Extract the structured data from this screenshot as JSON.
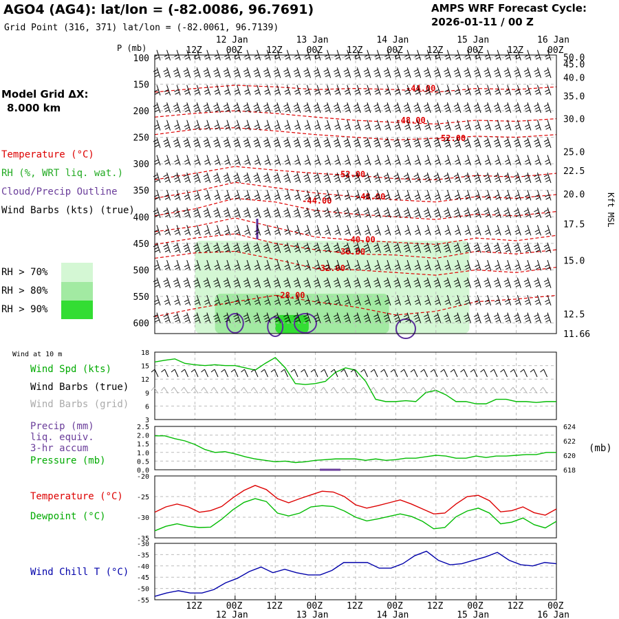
{
  "header": {
    "title": "AGO4 (AG4):  lat/lon = (-82.0086, 96.7691)",
    "grid_point": "Grid Point (316, 371) lat/lon = (-82.0061, 96.7139)",
    "cycle_label": "AMPS WRF Forecast Cycle:",
    "cycle_value": "2026-01-11 / 00  Z",
    "grid_dx_label": "Model Grid ΔX:",
    "grid_dx_value": "8.000 km"
  },
  "legend": {
    "temperature": "Temperature (°C)",
    "rh": "RH (%, WRT liq. wat.)",
    "cloud": "Cloud/Precip Outline",
    "wind_barbs": "Wind Barbs (kts) (true)",
    "rh70": "RH > 70%",
    "rh80": "RH > 80%",
    "rh90": "RH > 90%",
    "rh70_color": "#d4f7d4",
    "rh80_color": "#a2eaa2",
    "rh90_color": "#33dd33",
    "temp_color": "#dd0000",
    "cloud_color": "#5a2d9a"
  },
  "time_axis": {
    "hour_labels": [
      "12Z",
      "00Z",
      "12Z",
      "00Z",
      "12Z",
      "00Z",
      "12Z",
      "00Z",
      "12Z",
      "00Z"
    ],
    "date_labels": [
      "12 Jan",
      "13 Jan",
      "14 Jan",
      "15 Jan",
      "16 Jan"
    ]
  },
  "panels": {
    "p_axis_label": "P (mb)",
    "right_axis_label": "Kft MSL",
    "wind10_title": "Wind at 10 m",
    "wind_spd": "Wind Spd (kts)",
    "wind_barbs_true": "Wind Barbs (true)",
    "wind_barbs_grid": "Wind Barbs (grid)",
    "precip": "Precip (mm)",
    "liq": "liq. equiv.",
    "accum": "3-hr accum",
    "pressure": "Pressure (mb)",
    "pressure_units": "(mb)",
    "temperature": "Temperature (°C)",
    "dewpoint": "Dewpoint (°C)",
    "windchill": "Wind Chill T (°C)"
  },
  "colors": {
    "green": "#00bb00",
    "red": "#dd0000",
    "blue": "#0000aa",
    "purple": "#6a3d9a",
    "grey": "#aaaaaa"
  },
  "chart_data": [
    {
      "type": "time-height cross-section",
      "ylabel": "P (mb)",
      "y_ticks": [
        100,
        150,
        200,
        250,
        300,
        350,
        400,
        450,
        500,
        550,
        600
      ],
      "ylim": [
        620,
        95
      ],
      "right_axis_label": "Kft MSL",
      "right_ticks": [
        "50.0",
        "45.0",
        "40.0",
        "35.0",
        "30.0",
        "25.0",
        "22.5",
        "20.0",
        "17.5",
        "15.0",
        "12.5",
        "11.66"
      ],
      "right_tick_pressures": [
        99,
        112,
        137,
        172,
        215,
        277,
        313,
        357,
        413,
        482,
        583,
        620
      ],
      "xlim_hours": [
        0,
        120
      ],
      "temperature_contours": [
        {
          "value": "-28.00",
          "label_pos": [
            36,
            548
          ],
          "levels": [
            [
              0,
              588
            ],
            [
              12,
              573
            ],
            [
              24,
              560
            ],
            [
              36,
              548
            ],
            [
              48,
              560
            ],
            [
              60,
              570
            ],
            [
              72,
              585
            ],
            [
              84,
              578
            ],
            [
              96,
              560
            ],
            [
              108,
              555
            ],
            [
              120,
              548
            ]
          ]
        },
        {
          "value": "-32.00",
          "label_pos": [
            48,
            497
          ],
          "levels": [
            [
              0,
              478
            ],
            [
              12,
              468
            ],
            [
              24,
              465
            ],
            [
              36,
              480
            ],
            [
              48,
              497
            ],
            [
              60,
              500
            ],
            [
              72,
              505
            ],
            [
              84,
              510
            ],
            [
              96,
              500
            ],
            [
              108,
              505
            ],
            [
              120,
              495
            ]
          ]
        },
        {
          "value": "-36.00",
          "label_pos": [
            54,
            466
          ],
          "levels": [
            [
              0,
              452
            ],
            [
              12,
              440
            ],
            [
              24,
              432
            ],
            [
              36,
              450
            ],
            [
              48,
              462
            ],
            [
              60,
              470
            ],
            [
              72,
              472
            ],
            [
              84,
              478
            ],
            [
              96,
              465
            ],
            [
              108,
              470
            ],
            [
              120,
              462
            ]
          ]
        },
        {
          "value": "-40.00",
          "label_pos": [
            57,
            443
          ],
          "levels": [
            [
              0,
              428
            ],
            [
              12,
              418
            ],
            [
              24,
              402
            ],
            [
              36,
              420
            ],
            [
              48,
              438
            ],
            [
              60,
              444
            ],
            [
              72,
              448
            ],
            [
              84,
              452
            ],
            [
              96,
              440
            ],
            [
              108,
              445
            ],
            [
              120,
              435
            ]
          ]
        },
        {
          "value": "-44.00",
          "label_pos": [
            44,
            370
          ],
          "levels": [
            [
              0,
              398
            ],
            [
              12,
              385
            ],
            [
              24,
              365
            ],
            [
              36,
              372
            ],
            [
              48,
              388
            ],
            [
              60,
              395
            ],
            [
              72,
              400
            ],
            [
              84,
              405
            ],
            [
              96,
              395
            ],
            [
              108,
              398
            ],
            [
              120,
              390
            ]
          ]
        },
        {
          "value": "-48.00",
          "label_pos": [
            60,
            362
          ],
          "levels": [
            [
              0,
              365
            ],
            [
              12,
              352
            ],
            [
              24,
              335
            ],
            [
              36,
              345
            ],
            [
              48,
              355
            ],
            [
              60,
              362
            ],
            [
              72,
              368
            ],
            [
              84,
              372
            ],
            [
              96,
              362
            ],
            [
              108,
              365
            ],
            [
              120,
              358
            ]
          ]
        },
        {
          "value": "-52.00",
          "label_pos": [
            54,
            320
          ],
          "levels": [
            [
              0,
              330
            ],
            [
              12,
              318
            ],
            [
              24,
              305
            ],
            [
              36,
              312
            ],
            [
              48,
              318
            ],
            [
              60,
              322
            ],
            [
              72,
              328
            ],
            [
              84,
              330
            ],
            [
              96,
              322
            ],
            [
              108,
              325
            ],
            [
              120,
              318
            ]
          ]
        },
        {
          "value": "-52.00",
          "label_pos": [
            84,
            252
          ],
          "levels": [
            [
              0,
              245
            ],
            [
              12,
              235
            ],
            [
              24,
              232
            ],
            [
              36,
              238
            ],
            [
              48,
              245
            ],
            [
              60,
              250
            ],
            [
              72,
              255
            ],
            [
              84,
              252
            ],
            [
              96,
              248
            ],
            [
              108,
              250
            ],
            [
              120,
              245
            ]
          ]
        },
        {
          "value": "-48.00",
          "label_pos": [
            72,
            218
          ],
          "levels": [
            [
              0,
              212
            ],
            [
              12,
              205
            ],
            [
              24,
              200
            ],
            [
              36,
              205
            ],
            [
              48,
              212
            ],
            [
              60,
              218
            ],
            [
              72,
              222
            ],
            [
              84,
              225
            ],
            [
              96,
              218
            ],
            [
              108,
              220
            ],
            [
              120,
              215
            ]
          ]
        },
        {
          "value": "-44.00",
          "label_pos": [
            75,
            158
          ],
          "levels": [
            [
              0,
              165
            ],
            [
              12,
              158
            ],
            [
              24,
              152
            ],
            [
              36,
              155
            ],
            [
              48,
              160
            ],
            [
              60,
              158
            ],
            [
              72,
              160
            ],
            [
              84,
              165
            ],
            [
              96,
              158
            ],
            [
              108,
              160
            ],
            [
              120,
              155
            ]
          ]
        }
      ],
      "rh_regions": [
        {
          "threshold": "RH > 70%",
          "hours": [
            12,
            94
          ],
          "p_range": [
            620,
            445
          ]
        },
        {
          "threshold": "RH > 80%",
          "hours": [
            18,
            70
          ],
          "p_range": [
            620,
            545
          ]
        },
        {
          "threshold": "RH > 90%",
          "hours": [
            36,
            46
          ],
          "p_range": [
            620,
            585
          ]
        }
      ]
    },
    {
      "type": "line",
      "title": "Wind at 10 m",
      "ylabel": "Wind Spd (kts)",
      "ylim": [
        3,
        18
      ],
      "y_ticks": [
        3,
        6,
        9,
        12,
        15,
        18
      ],
      "x_hours": [
        0,
        3,
        6,
        9,
        12,
        15,
        18,
        21,
        24,
        27,
        30,
        33,
        36,
        39,
        42,
        45,
        48,
        51,
        54,
        57,
        60,
        63,
        66,
        69,
        72,
        75,
        78,
        81,
        84,
        87,
        90,
        93,
        96,
        99,
        102,
        105,
        108,
        111,
        114,
        117,
        120
      ],
      "series": [
        {
          "name": "Wind Spd (kts)",
          "values": [
            15.8,
            16.2,
            16.5,
            15.5,
            15.2,
            15.0,
            15.2,
            15.0,
            15.0,
            14.5,
            14.0,
            15.5,
            16.8,
            14.5,
            11.0,
            10.8,
            11.0,
            11.5,
            13.5,
            14.5,
            14.0,
            11.5,
            7.5,
            7.0,
            7.0,
            7.2,
            7.0,
            9.0,
            9.5,
            8.5,
            7.0,
            7.0,
            6.5,
            6.5,
            7.5,
            7.5,
            7.0,
            7.0,
            6.8,
            7.0,
            7.0
          ]
        }
      ]
    },
    {
      "type": "line",
      "ylabel": "Precip (mm) / Pressure (mb)",
      "ylim": [
        0.0,
        2.5
      ],
      "y_ticks": [
        "0.0",
        "0.5",
        "1.0",
        "1.5",
        "2.0",
        "2.5"
      ],
      "right_ylim": [
        618,
        624
      ],
      "right_ticks": [
        "618",
        "620",
        "622",
        "624"
      ],
      "x_hours": [
        0,
        3,
        6,
        9,
        12,
        15,
        18,
        21,
        24,
        27,
        30,
        33,
        36,
        39,
        42,
        45,
        48,
        51,
        54,
        57,
        60,
        63,
        66,
        69,
        72,
        75,
        78,
        81,
        84,
        87,
        90,
        93,
        96,
        99,
        102,
        105,
        108,
        111,
        114,
        117,
        120
      ],
      "series": [
        {
          "name": "Pressure (mb)",
          "axis": "right",
          "values": [
            622.7,
            622.7,
            622.3,
            622.0,
            621.5,
            620.8,
            620.4,
            620.5,
            620.2,
            619.8,
            619.5,
            619.3,
            619.1,
            619.2,
            619.0,
            619.1,
            619.3,
            619.4,
            619.5,
            619.5,
            619.5,
            619.3,
            619.5,
            619.3,
            619.4,
            619.6,
            619.6,
            619.8,
            620.0,
            619.9,
            619.6,
            619.6,
            619.9,
            619.7,
            619.9,
            619.9,
            620.0,
            620.1,
            620.1,
            620.4,
            620.4
          ]
        },
        {
          "name": "Precip (mm)",
          "axis": "left",
          "values": [
            0,
            0,
            0,
            0,
            0,
            0,
            0,
            0,
            0,
            0,
            0,
            0,
            0,
            0,
            0,
            0,
            0,
            0,
            0.02,
            0.02,
            0,
            0,
            0,
            0,
            0,
            0,
            0,
            0,
            0,
            0,
            0,
            0,
            0,
            0,
            0,
            0,
            0,
            0,
            0,
            0,
            0
          ]
        }
      ]
    },
    {
      "type": "line",
      "ylim": [
        -35,
        -20
      ],
      "y_ticks": [
        -35,
        -30,
        -25,
        -20
      ],
      "x_hours": [
        0,
        3,
        6,
        9,
        12,
        15,
        18,
        21,
        24,
        27,
        30,
        33,
        36,
        39,
        42,
        45,
        48,
        51,
        54,
        57,
        60,
        63,
        66,
        69,
        72,
        75,
        78,
        81,
        84,
        87,
        90,
        93,
        96,
        99,
        102,
        105,
        108,
        111,
        114,
        117,
        120
      ],
      "series": [
        {
          "name": "Temperature (°C)",
          "values": [
            -28.8,
            -27.5,
            -26.8,
            -27.5,
            -28.8,
            -28.4,
            -27.4,
            -25.3,
            -23.5,
            -22.3,
            -23.3,
            -25.5,
            -26.5,
            -25.5,
            -24.6,
            -23.7,
            -23.9,
            -25.0,
            -27.0,
            -27.8,
            -27.2,
            -26.5,
            -25.8,
            -26.8,
            -28.0,
            -29.2,
            -29.0,
            -26.8,
            -25.0,
            -24.7,
            -26.0,
            -28.7,
            -28.4,
            -27.5,
            -28.9,
            -29.5,
            -28.0
          ]
        },
        {
          "name": "Dewpoint (°C)",
          "values": [
            -33.3,
            -32.2,
            -31.6,
            -32.2,
            -32.5,
            -32.4,
            -30.5,
            -28.2,
            -26.4,
            -25.5,
            -26.2,
            -29.0,
            -29.7,
            -29.0,
            -27.5,
            -27.2,
            -27.4,
            -28.5,
            -30.0,
            -30.9,
            -30.4,
            -29.8,
            -29.2,
            -29.8,
            -31.0,
            -32.8,
            -32.5,
            -29.9,
            -28.5,
            -27.8,
            -29.0,
            -31.6,
            -31.2,
            -30.2,
            -31.8,
            -32.6,
            -31.0
          ]
        }
      ],
      "x_hours_note": "values sampled every ~3.33 h across 0-120 h"
    },
    {
      "type": "line",
      "ylim": [
        -55,
        -30
      ],
      "y_ticks": [
        -55,
        -50,
        -45,
        -40,
        -35,
        -30
      ],
      "series": [
        {
          "name": "Wind Chill T (°C)",
          "values": [
            -53.5,
            -52.0,
            -51.0,
            -52.0,
            -52.0,
            -50.5,
            -47.5,
            -45.5,
            -42.5,
            -40.5,
            -43.0,
            -41.5,
            -43.0,
            -44.0,
            -44.0,
            -42.0,
            -38.5,
            -38.5,
            -38.5,
            -41.0,
            -41.0,
            -39.0,
            -35.5,
            -33.5,
            -37.5,
            -39.5,
            -39.0,
            -37.5,
            -36.0,
            -34.0,
            -37.5,
            -39.5,
            -40.0,
            -38.5,
            -39.0
          ]
        }
      ]
    }
  ]
}
